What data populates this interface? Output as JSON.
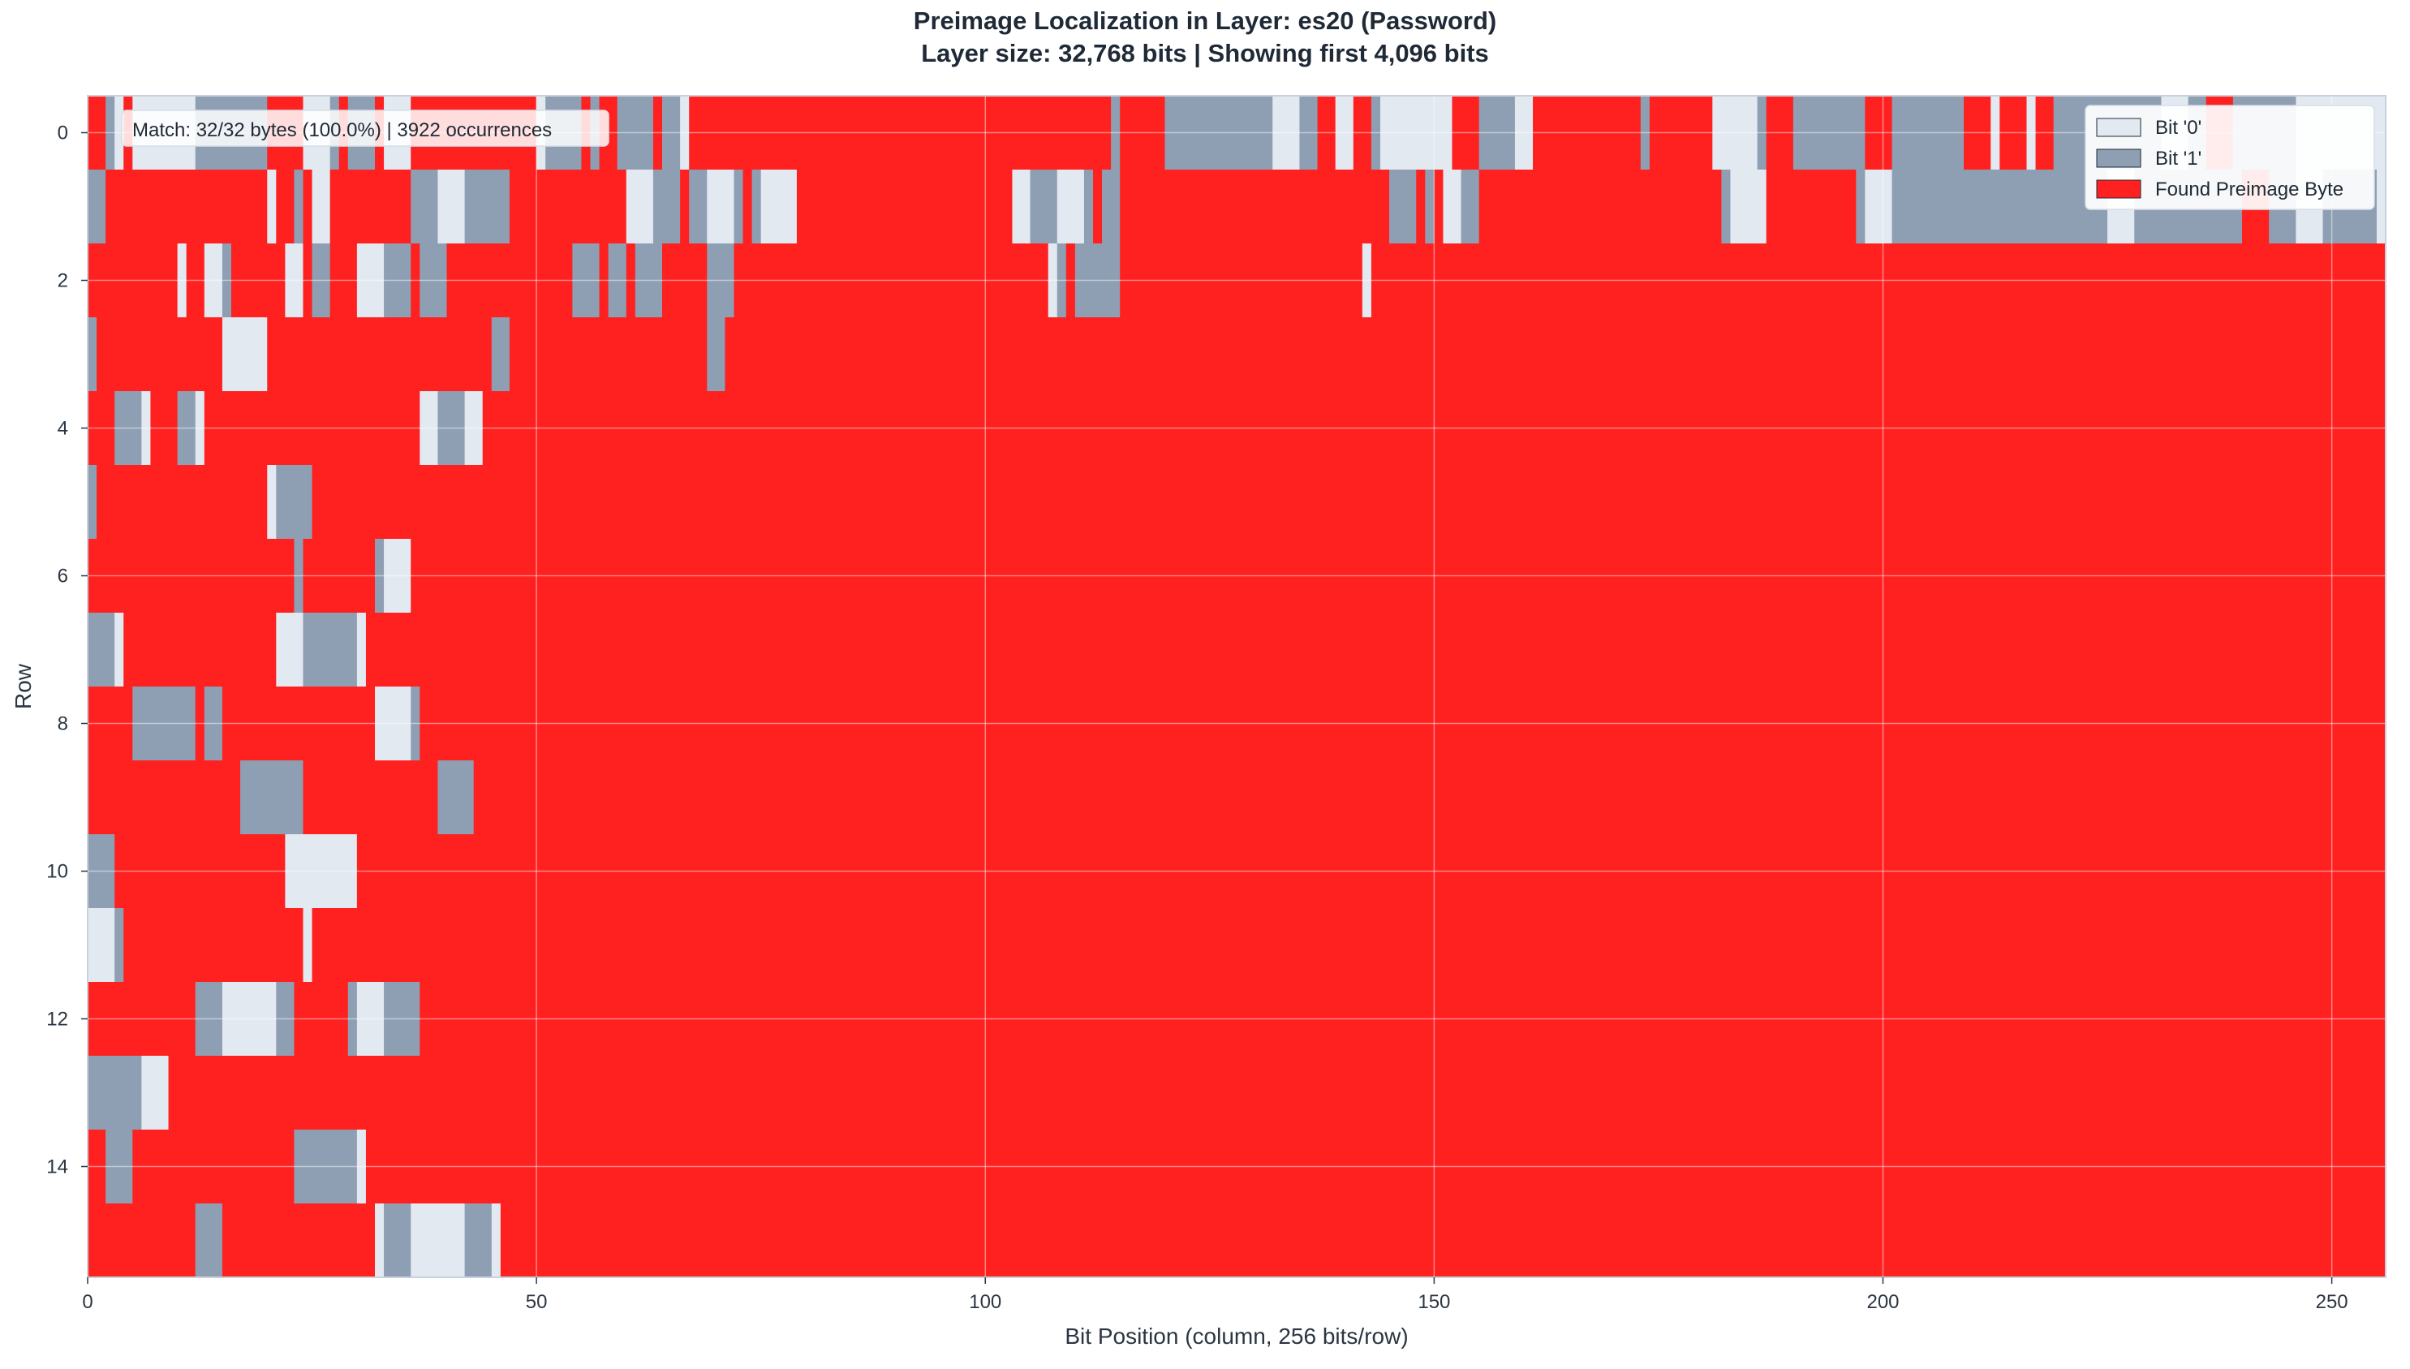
{
  "chart_data": {
    "type": "heatmap",
    "title": "Preimage Localization in Layer: es20 (Password)",
    "subtitle": "Layer size: 32,768 bits | Showing first 4,096 bits",
    "xlabel": "Bit Position (column, 256 bits/row)",
    "ylabel": "Row",
    "xlim": [
      0,
      256
    ],
    "ylim": [
      0,
      16
    ],
    "x_ticks": [
      0,
      50,
      100,
      150,
      200,
      250
    ],
    "y_ticks": [
      0,
      2,
      4,
      6,
      8,
      10,
      12,
      14
    ],
    "grid": true,
    "legend_position": "top-right",
    "legend": [
      {
        "label": "Bit '0'",
        "color": "#e2e9f1"
      },
      {
        "label": "Bit '1'",
        "color": "#8e9fb3"
      },
      {
        "label": "Found Preimage Byte",
        "color": "#ff2020"
      }
    ],
    "annotation": "Match: 32/32 bytes (100.0%) | 3922 occurrences",
    "rows": [
      "00111101111111111111111111111100000001111100111110111010000000000000000000001111111101100011101100101110000000000000000000000000000000000000000000000000000000000000000000000001000000001111111111111111111111111100001010101111111111111100000111111110000000000000000000110000000000011111111000000111111111110000011111111111100000010000010001111111111111111111111111110000111111111111111111111111111",
      "11100000000000000000000000000010001101010000000000000011111111111111110000000000000000000001111101110111111101001111111000000000000000000000000000000000000111111111111111011101000000000000000000000000000000000000000000001111011011111110000000000000000000000000000000000000000011111110000000000000001111111111111111111111111111111111111111111111111111111111111111110000111111111111111111111",
      "00000000000000110101111100000000011101010000111111111101111100000000000000000000011110011101111000000001111100000000000000000000000000000000000000000000000000001111011111110000000000000000000000000000000000000000001000000000000000000000010000000000000000000000000000000000000000000000000000000000000000000000000000000000000000000000000000000000000000000000000000000000000000000000000000",
      "10000000000000000000001111111100000000000000000000000000000000000001110000000000000000000000000000000001110000001000000000000000000000000000000000000000000000000000000000000000000000000000000000000000000000000000000000000000000000000000000000000000000000000000000000000000000000000000000000000000000000000000000000000000000000000000000000000000000000000000000000000000000000000000000000",
      "0000111111000001111000000000000000000000000000000000000111111111110000000000000000000000000000000000000000000000000000000000000000000000000000000000000000000000000000000000000000000000000000000000000000000000000000000000000000000000000000000000000000000000000000000000000000000000000000000000000000000000000000000000000000000000000000000000000000000000000000000000000000000000000000000000",
      "1000000000000000000000000000011111111000000000000000000000000000000000000000000000000000000000000000000000000000000000000000000000000000000000000000000000000000000000000000000000000000000000000000000000000000000000000000000000000000000000000000000000000000000000000000000000000000000000000000000000000000000000000000000000000000000000000000000000000000000000000000000000000000000000000000",
      "0000000000000000000000000000000010100000000000011111110000000000000000000000000000000000000000000000000000000000000000000000000000000000000000000000000000000000000000000000000000000000000000000000000000000000000000000000000000000000000000000000000000000000000000000000000000000000000000000000000000000000000000000000000000000000000000000000000000000000000000000000000000000000000000000000",
      "1111110000000000000010000000000111111111111111000000000000000000000000000000000000000000000000000000000000000000000000000000000000000000000000000000000000000000000000000000000000000000000000000000000000000000000000000000000000000000000000000000000000000000000000000000000000000000000000000000000000000000000000000000000000000000000000000000000000000000000000000000000000000000000000000000",
      "0000000111111111100101010000000000000000000000001111111000000000000000000000000000000000000000000000000000000000000000000000000000000000000000000000000000000000000000000000000000000000000000000000000000000000000000000000000000000000000000000000000000000000000000000000000000000000000000000000000000000000000000000000000000000000000000000000000000000000000000000000000000000000000000000000",
      "0000010000000000000000000111111111100000000000000000000000011111100000000000000000000000000000000000000000000000000000000000000000000000000000000000000000000000000000000000000000000000000000000000000000000000000000000000000000000000000000000000000000000000000000000000000000000000000000000000000000000000000000000000000000000000000000000000000000000000000000000000000000000000000000000000",
      "1111000000000000000000000000000001111111111110000000000000000000000000000000000000000000000000000000000000000000000000000000000000000000000000000000000000000000000000000000000000000000000000000000000000000000000000000000000000000000000000000000000000000000000000000000000000000000000000000000000000000000000000000000000000000000000000000000000000000000000000000000000000000000000000000000",
      "1111100000000000000000000000000000001000000000010000000000000000000000000000000000000000000000000000000000000000000000000000000000000000000000000000000000000000000000000000000000000000000000000000000000000000000000000000000000000000000000000000000000000000000000000000000000000000000000000000000000000000000000000000000000000000000000000000000000000000000000000000000000000000000000000000",
      "0000000000000000011111111111111111000000000111111111111100000000000000000000000000000000000000000000000000000000000000000000000000000000000000000000000000000000000000000000000000000000000000000000000000000000000000000000000000000000000000000000000000000000000000000000000000000000000000000000000000000000000000000000000000000000000000000000000000000000000000000000000000000000000000000000",
      "1111111111111000000000000000000000000000000000000000000000000000000000000000000000000000000000000000000000000000000000000000000000000000000000000000000000000000000000000000000000000000000000000000000000000000000000000000000000000000000000000000000000000000000000000000000000000000000000000000000000000000000000000000000000000000000000000000000000000000000000000000000000000000000000000000",
      "0011111000000000000000000000000000111111111111000000000000000000000000000000000000000000000000000000000000000000000000000000000000000000000000000000000000000000000000000000000000000000000000000000000000000000000000000000000000000000000000000000000000000000000000000000000000000000000000000000000000000000000000000000000000000000000000000000000000000000000000000000000000000000000000000000",
      "0000000000000000011111000000000000000000000000011111111111111111111110000000000000000000000000000000000000000000000000000000000000000000000000000000000000000000000000000000000000000000000000000000000000000000000000000000000000000000000000000000000000000000000000000000000000000000000000000000000000000000000000000000000000000000000000000000000000000000000000000000000000000000000000000000"
    ],
    "rows_note_cell_codes": "0=Found Preimage Byte, 1=Bit '0', 2=Bit '1'"
  }
}
